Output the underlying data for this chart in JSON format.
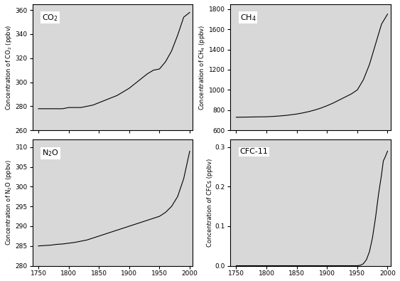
{
  "co2": {
    "label": "CO$_2$",
    "ylabel": "Concentration of CO$_2$ (ppbv)",
    "ylim": [
      260,
      365
    ],
    "yticks": [
      260,
      280,
      300,
      320,
      340,
      360
    ],
    "ytick_labels": [
      "260",
      "280",
      "300",
      "320",
      "340",
      "360"
    ],
    "years": [
      1750,
      1760,
      1770,
      1780,
      1790,
      1800,
      1810,
      1820,
      1830,
      1840,
      1850,
      1860,
      1870,
      1880,
      1890,
      1900,
      1910,
      1920,
      1930,
      1940,
      1950,
      1960,
      1970,
      1980,
      1990,
      2000
    ],
    "values": [
      278,
      278,
      278,
      278,
      278,
      279,
      279,
      279,
      280,
      281,
      283,
      285,
      287,
      289,
      292,
      295,
      299,
      303,
      307,
      310,
      311,
      317,
      326,
      339,
      354,
      358
    ]
  },
  "ch4": {
    "label": "CH$_4$",
    "ylabel": "Concentration of CH$_4$ (ppbv)",
    "ylim": [
      600,
      1850
    ],
    "yticks": [
      600,
      800,
      1000,
      1200,
      1400,
      1600,
      1800
    ],
    "ytick_labels": [
      "600",
      "800",
      "1000",
      "1200",
      "1400",
      "1600",
      "1800"
    ],
    "years": [
      1750,
      1760,
      1770,
      1780,
      1790,
      1800,
      1810,
      1820,
      1830,
      1840,
      1850,
      1860,
      1870,
      1880,
      1890,
      1900,
      1910,
      1920,
      1930,
      1940,
      1950,
      1960,
      1970,
      1980,
      1990,
      2000
    ],
    "values": [
      730,
      731,
      732,
      733,
      734,
      735,
      738,
      742,
      747,
      754,
      762,
      773,
      786,
      802,
      821,
      844,
      870,
      900,
      930,
      960,
      1000,
      1100,
      1250,
      1450,
      1650,
      1750
    ]
  },
  "n2o": {
    "label": "N$_2$O",
    "ylabel": "Concentration of N$_2$O (ppbv)",
    "ylim": [
      280,
      312
    ],
    "yticks": [
      280,
      285,
      290,
      295,
      300,
      305,
      310
    ],
    "ytick_labels": [
      "280",
      "285",
      "290",
      "295",
      "300",
      "305",
      "310"
    ],
    "years": [
      1750,
      1760,
      1770,
      1780,
      1790,
      1800,
      1810,
      1820,
      1830,
      1840,
      1850,
      1860,
      1870,
      1880,
      1890,
      1900,
      1910,
      1920,
      1930,
      1940,
      1950,
      1960,
      1970,
      1980,
      1990,
      2000
    ],
    "values": [
      285.0,
      285.1,
      285.2,
      285.4,
      285.5,
      285.7,
      285.9,
      286.2,
      286.5,
      287.0,
      287.5,
      288.0,
      288.5,
      289.0,
      289.5,
      290.0,
      290.5,
      291.0,
      291.5,
      292.0,
      292.5,
      293.5,
      295.0,
      297.5,
      302.0,
      309.0
    ]
  },
  "cfc11": {
    "label": "CFC-11",
    "ylabel": "Concentration of CFCs (ppbv)",
    "ylim": [
      0.0,
      0.32
    ],
    "yticks": [
      0.0,
      0.1,
      0.2,
      0.3
    ],
    "ytick_labels": [
      "0.0",
      "0.1",
      "0.2",
      "0.3"
    ],
    "years": [
      1750,
      1800,
      1850,
      1900,
      1920,
      1940,
      1950,
      1955,
      1960,
      1965,
      1970,
      1975,
      1980,
      1985,
      1990,
      1993,
      1996,
      2000
    ],
    "values": [
      0.0,
      0.0,
      0.0,
      0.0,
      0.0,
      0.0,
      0.0,
      0.001,
      0.005,
      0.015,
      0.035,
      0.07,
      0.12,
      0.18,
      0.23,
      0.265,
      0.275,
      0.29
    ]
  },
  "xlim": [
    1740,
    2005
  ],
  "xticks": [
    1750,
    1800,
    1850,
    1900,
    1950,
    2000
  ],
  "xtick_labels": [
    "1750",
    "1800",
    "1850",
    "1900",
    "1950",
    "2000"
  ],
  "line_color": "#000000",
  "bg_color": "#ffffff",
  "plot_bg": "#d8d8d8"
}
